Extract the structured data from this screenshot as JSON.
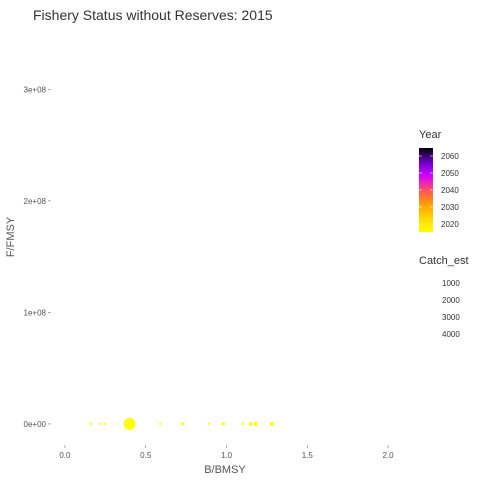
{
  "chart_data": {
    "type": "scatter",
    "title": "Fishery Status without Reserves: 2015",
    "xlabel": "B/BMSY",
    "ylabel": "F/FMSY",
    "xlim": [
      -0.08,
      2.08
    ],
    "ylim": [
      -18000000.0,
      355000000.0
    ],
    "x_ticks": [
      {
        "value": 0.0,
        "label": "0.0"
      },
      {
        "value": 0.5,
        "label": "0.5"
      },
      {
        "value": 1.0,
        "label": "1.0"
      },
      {
        "value": 1.5,
        "label": "1.5"
      },
      {
        "value": 2.0,
        "label": "2.0"
      }
    ],
    "y_ticks": [
      {
        "value": 0,
        "label": "0e+00"
      },
      {
        "value": 100000000,
        "label": "1e+08"
      },
      {
        "value": 200000000,
        "label": "2e+08"
      },
      {
        "value": 300000000,
        "label": "3e+08"
      }
    ],
    "grid": false,
    "legend_placement": "right",
    "point_color": "#ffff00",
    "points": [
      {
        "x": 0.16,
        "y": 0,
        "size": 80
      },
      {
        "x": 0.22,
        "y": 0,
        "size": 100
      },
      {
        "x": 0.25,
        "y": 0,
        "size": 120
      },
      {
        "x": 0.4,
        "y": 0,
        "size": 4500
      },
      {
        "x": 0.59,
        "y": 0,
        "size": 120
      },
      {
        "x": 0.73,
        "y": 0,
        "size": 300
      },
      {
        "x": 0.89,
        "y": 0,
        "size": 150
      },
      {
        "x": 0.98,
        "y": 0,
        "size": 400
      },
      {
        "x": 1.1,
        "y": 0,
        "size": 150
      },
      {
        "x": 1.15,
        "y": 0,
        "size": 400
      },
      {
        "x": 1.18,
        "y": 0,
        "size": 500
      },
      {
        "x": 1.28,
        "y": 0,
        "size": 600
      }
    ],
    "legends": {
      "color": {
        "title": "Year",
        "labels": [
          "2060",
          "2050",
          "2040",
          "2030",
          "2020"
        ],
        "gradient": [
          "#ffff00",
          "#ffd700",
          "#ff9f00",
          "#ff4f5f",
          "#d400ff",
          "#6a00c8",
          "#000000"
        ]
      },
      "size": {
        "title": "Catch_est",
        "labels": [
          "1000",
          "2000",
          "3000",
          "4000"
        ]
      }
    }
  }
}
